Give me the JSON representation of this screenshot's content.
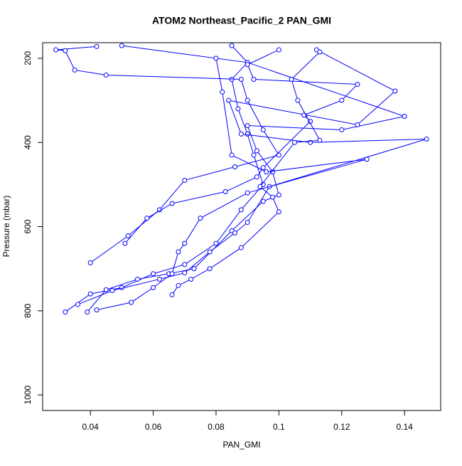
{
  "chart_data": {
    "type": "scatter-line",
    "title": "ATOM2 Northeast_Pacific_2 PAN_GMI",
    "x_label": "PAN_GMI",
    "y_label": "Pressure (mbar)",
    "color": "#0000ff",
    "xlim": [
      0.0248,
      0.1515
    ],
    "ylim": [
      1037,
      163
    ],
    "xticks": [
      0.04,
      0.06,
      0.08,
      0.1,
      0.12,
      0.14
    ],
    "yticks": [
      200,
      400,
      600,
      800,
      1000
    ],
    "series": [
      {
        "x": [
          0.032,
          0.04,
          0.05,
          0.06,
          0.07,
          0.08,
          0.088,
          0.095,
          0.092,
          0.09,
          0.087,
          0.085,
          0.09,
          0.085
        ],
        "values": [
          803,
          760,
          745,
          712,
          690,
          640,
          560,
          500,
          430,
          380,
          320,
          250,
          210,
          170
        ]
      },
      {
        "x": [
          0.039,
          0.045,
          0.055,
          0.065,
          0.073,
          0.085,
          0.095,
          0.1,
          0.098,
          0.093,
          0.09,
          0.12,
          0.14,
          0.09,
          0.05
        ],
        "values": [
          803,
          750,
          725,
          712,
          700,
          610,
          540,
          525,
          470,
          420,
          360,
          370,
          338,
          210,
          170
        ]
      },
      {
        "x": [
          0.036,
          0.047,
          0.062,
          0.07,
          0.078,
          0.086,
          0.09,
          0.097,
          0.147,
          0.11,
          0.088,
          0.084,
          0.125,
          0.137,
          0.112
        ],
        "values": [
          785,
          752,
          725,
          710,
          660,
          615,
          590,
          505,
          392,
          400,
          380,
          300,
          358,
          278,
          180
        ]
      },
      {
        "x": [
          0.042,
          0.053,
          0.06,
          0.066,
          0.068,
          0.07,
          0.075,
          0.09,
          0.128,
          0.096,
          0.085,
          0.082,
          0.08
        ],
        "values": [
          798,
          780,
          745,
          712,
          660,
          640,
          580,
          520,
          440,
          470,
          430,
          280,
          200
        ]
      },
      {
        "x": [
          0.04,
          0.052,
          0.062,
          0.07,
          0.086,
          0.1,
          0.095,
          0.09,
          0.088,
          0.045,
          0.035,
          0.032,
          0.029,
          0.042
        ],
        "values": [
          686,
          622,
          560,
          490,
          458,
          430,
          370,
          300,
          250,
          240,
          228,
          182,
          180,
          172
        ]
      },
      {
        "x": [
          0.051,
          0.058,
          0.066,
          0.083,
          0.093,
          0.095,
          0.11,
          0.108,
          0.12,
          0.125,
          0.092,
          0.09,
          0.1
        ],
        "values": [
          640,
          580,
          545,
          517,
          482,
          460,
          350,
          335,
          300,
          262,
          250,
          215,
          180
        ]
      },
      {
        "x": [
          0.066,
          0.068,
          0.072,
          0.078,
          0.088,
          0.1,
          0.098,
          0.094,
          0.105,
          0.113,
          0.106,
          0.104,
          0.113
        ],
        "values": [
          762,
          740,
          725,
          700,
          650,
          565,
          530,
          505,
          400,
          395,
          300,
          250,
          185
        ]
      }
    ]
  }
}
